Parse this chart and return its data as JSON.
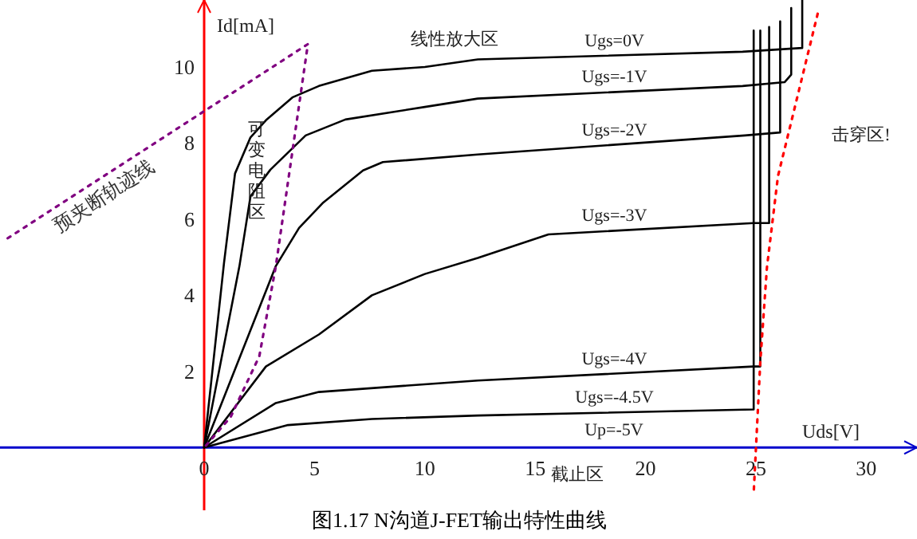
{
  "chart_data": {
    "type": "line",
    "title": "图1.17  N沟道J-FET输出特性曲线",
    "xlabel": "Uds[V]",
    "ylabel": "Id[mA]",
    "xlim": [
      -9.25,
      32.3
    ],
    "ylim": [
      -1.65,
      11.76
    ],
    "xticks": [
      0,
      5,
      10,
      15,
      20,
      25,
      30
    ],
    "yticks": [
      2,
      4,
      6,
      8,
      10
    ],
    "grid": false,
    "series": [
      {
        "name": "Ugs=0V",
        "color": "#000000",
        "x": [
          0,
          0.9,
          1.4,
          2.1,
          2.8,
          4.0,
          5.2,
          7.6,
          10.0,
          12.4,
          24.4,
          27.1,
          27.1
        ],
        "values": [
          0,
          4.85,
          7.2,
          8.15,
          8.6,
          9.2,
          9.5,
          9.9,
          10.0,
          10.2,
          10.4,
          10.5,
          11.76
        ]
      },
      {
        "name": "Ugs=-1V",
        "color": "#000000",
        "x": [
          0,
          1.6,
          2.1,
          3.0,
          4.6,
          6.4,
          10.0,
          12.4,
          24.4,
          26.3,
          26.6,
          26.6
        ],
        "values": [
          0,
          4.77,
          6.6,
          7.3,
          8.2,
          8.62,
          8.95,
          9.17,
          9.5,
          9.6,
          9.8,
          11.55
        ]
      },
      {
        "name": "Ugs=-2V",
        "color": "#000000",
        "x": [
          0,
          3.25,
          4.3,
          5.4,
          7.2,
          8.1,
          12.4,
          24.5,
          26.1,
          26.1
        ],
        "values": [
          0,
          4.77,
          5.77,
          6.44,
          7.28,
          7.5,
          7.7,
          8.2,
          8.28,
          11.2
        ]
      },
      {
        "name": "Ugs=-3V",
        "color": "#000000",
        "x": [
          0,
          2.8,
          5.2,
          7.6,
          10.0,
          12.4,
          15.6,
          24.9,
          25.6,
          25.6
        ],
        "values": [
          0,
          2.13,
          2.97,
          4.0,
          4.56,
          4.98,
          5.6,
          5.9,
          5.9,
          11.05
        ]
      },
      {
        "name": "Ugs=-4V",
        "color": "#000000",
        "x": [
          0,
          3.25,
          5.2,
          12.4,
          24.9,
          25.2,
          25.2
        ],
        "values": [
          0,
          1.17,
          1.46,
          1.76,
          2.13,
          2.13,
          10.96
        ]
      },
      {
        "name": "Ugs=-4.5V",
        "color": "#000000",
        "x": [
          0,
          3.8,
          7.6,
          12.4,
          24.9,
          24.9
        ],
        "values": [
          0,
          0.59,
          0.75,
          0.84,
          1.0,
          10.96
        ]
      },
      {
        "name": "预夹断轨迹线",
        "color": "#800080",
        "line_style": "dotted",
        "x": [
          -8.9,
          4.7,
          3.25,
          2.5,
          1.2,
          0
        ],
        "values": [
          5.5,
          10.6,
          4.77,
          2.4,
          0.8,
          0
        ]
      },
      {
        "color": "#ff0000",
        "line_style": "dotted",
        "x": [
          27.8,
          26.0,
          25.5,
          25.2,
          24.9
        ],
        "values": [
          11.4,
          7.13,
          4.73,
          2.25,
          -1.2
        ]
      }
    ],
    "annotations": [
      "线性放大区",
      "可变电阻区",
      "截止区",
      "击穿区!",
      "Up=-5V"
    ]
  }
}
